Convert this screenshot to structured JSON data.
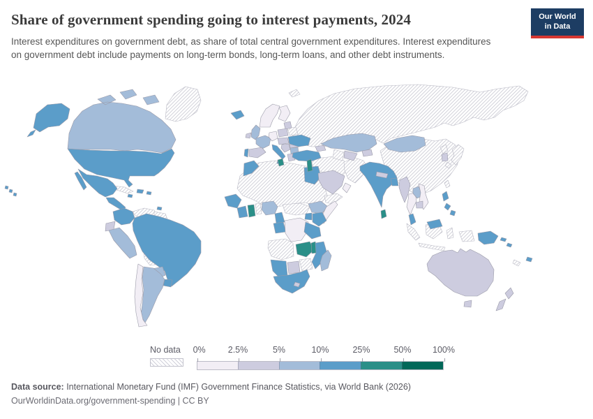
{
  "header": {
    "title": "Share of government spending going to interest payments, 2024",
    "subtitle": "Interest expenditures on government debt, as share of total central government expenditures. Interest expenditures on government debt include payments on long-term bonds, long-term loans, and other debt instruments."
  },
  "logo": {
    "line1": "Our World",
    "line2": "in Data",
    "bg_color": "#1d3d63",
    "accent_color": "#d73731"
  },
  "legend": {
    "no_data_label": "No data",
    "ticks": [
      "0%",
      "2.5%",
      "5%",
      "10%",
      "25%",
      "50%",
      "100%"
    ],
    "colors": [
      "#f2eef5",
      "#cdccdf",
      "#a3bcd9",
      "#5b9dc9",
      "#2a8f88",
      "#016859"
    ]
  },
  "map": {
    "border_color": "#9a9aa8",
    "hatch_line_color": "#cdcdd7",
    "countries": [
      {
        "id": "greenland",
        "name": "Greenland",
        "bin": 0
      },
      {
        "id": "svalbard",
        "name": "Svalbard",
        "bin": 0
      },
      {
        "id": "russia",
        "name": "Russia",
        "bin": 0
      },
      {
        "id": "china",
        "name": "China",
        "bin": 0
      },
      {
        "id": "sahara",
        "name": "Sahara and Sahel region",
        "bin": 0
      },
      {
        "id": "venezuela",
        "name": "Venezuela",
        "bin": 0
      },
      {
        "id": "guyana",
        "name": "Guyana and Suriname",
        "bin": 0
      },
      {
        "id": "bolivia",
        "name": "Bolivia",
        "bin": 0
      },
      {
        "id": "cuba",
        "name": "Cuba",
        "bin": 0
      },
      {
        "id": "angola",
        "name": "Angola",
        "bin": 0
      },
      {
        "id": "zimbabwe",
        "name": "Zimbabwe",
        "bin": 0
      },
      {
        "id": "togo-benin",
        "name": "Togo and Benin",
        "bin": 0
      },
      {
        "id": "car",
        "name": "Central African Republic and South Sudan",
        "bin": 0
      },
      {
        "id": "yemen",
        "name": "Yemen",
        "bin": 0
      },
      {
        "id": "iran-iraq",
        "name": "Iran and Iraq",
        "bin": 0
      },
      {
        "id": "af-pak",
        "name": "Afghanistan and Pakistan",
        "bin": 0
      },
      {
        "id": "japan",
        "name": "Japan",
        "bin": 0
      },
      {
        "id": "north-korea",
        "name": "North Korea",
        "bin": 0
      },
      {
        "id": "indonesia",
        "name": "Indonesia",
        "bin": 0
      },
      {
        "id": "new-caledonia",
        "name": "New Caledonia",
        "bin": 0
      },
      {
        "id": "taiwan",
        "name": "Taiwan",
        "bin": 0
      },
      {
        "id": "belarus",
        "name": "Belarus",
        "bin": 0
      },
      {
        "id": "turkmenistan",
        "name": "Turkmenistan",
        "bin": 0
      },
      {
        "id": "canada",
        "name": "Canada",
        "bin": 3
      },
      {
        "id": "usa",
        "name": "United States",
        "bin": 4
      },
      {
        "id": "mexico",
        "name": "Mexico",
        "bin": 4
      },
      {
        "id": "central-america",
        "name": "Central America",
        "bin": 4
      },
      {
        "id": "caribbean",
        "name": "Caribbean islands",
        "bin": 4
      },
      {
        "id": "colombia",
        "name": "Colombia",
        "bin": 4
      },
      {
        "id": "ecuador",
        "name": "Ecuador",
        "bin": 2
      },
      {
        "id": "peru",
        "name": "Peru",
        "bin": 3
      },
      {
        "id": "brazil",
        "name": "Brazil",
        "bin": 4
      },
      {
        "id": "paraguay",
        "name": "Paraguay",
        "bin": 3
      },
      {
        "id": "uruguay",
        "name": "Uruguay",
        "bin": 4
      },
      {
        "id": "argentina",
        "name": "Argentina",
        "bin": 3
      },
      {
        "id": "chile",
        "name": "Chile",
        "bin": 1
      },
      {
        "id": "iceland",
        "name": "Iceland",
        "bin": 4
      },
      {
        "id": "scandinavia",
        "name": "Norway and Sweden",
        "bin": 1
      },
      {
        "id": "finland",
        "name": "Finland",
        "bin": 1
      },
      {
        "id": "baltics",
        "name": "Baltic states",
        "bin": 2
      },
      {
        "id": "uk",
        "name": "United Kingdom",
        "bin": 3
      },
      {
        "id": "ireland",
        "name": "Ireland",
        "bin": 2
      },
      {
        "id": "france",
        "name": "France",
        "bin": 3
      },
      {
        "id": "spain",
        "name": "Spain",
        "bin": 2
      },
      {
        "id": "portugal",
        "name": "Portugal",
        "bin": 4
      },
      {
        "id": "germany",
        "name": "Germany",
        "bin": 1
      },
      {
        "id": "poland",
        "name": "Poland",
        "bin": 2
      },
      {
        "id": "central-europe",
        "name": "Central Europe",
        "bin": 2
      },
      {
        "id": "italy",
        "name": "Italy",
        "bin": 4
      },
      {
        "id": "balkans",
        "name": "Balkans",
        "bin": 2
      },
      {
        "id": "romania",
        "name": "Romania",
        "bin": 2
      },
      {
        "id": "bulgaria",
        "name": "Bulgaria",
        "bin": 3
      },
      {
        "id": "greece",
        "name": "Greece",
        "bin": 2
      },
      {
        "id": "ukraine",
        "name": "Ukraine",
        "bin": 4
      },
      {
        "id": "turkey",
        "name": "Turkey",
        "bin": 4
      },
      {
        "id": "caucasus",
        "name": "Caucasus",
        "bin": 2
      },
      {
        "id": "morocco",
        "name": "Morocco",
        "bin": 4
      },
      {
        "id": "tunisia",
        "name": "Tunisia",
        "bin": 5
      },
      {
        "id": "egypt",
        "name": "Egypt",
        "bin": 4
      },
      {
        "id": "levant",
        "name": "Levant",
        "bin": 5
      },
      {
        "id": "saudi-arabia",
        "name": "Saudi Arabia",
        "bin": 2
      },
      {
        "id": "oman",
        "name": "Oman",
        "bin": 1
      },
      {
        "id": "kazakhstan",
        "name": "Kazakhstan",
        "bin": 3
      },
      {
        "id": "uzbekistan",
        "name": "Uzbekistan",
        "bin": 2
      },
      {
        "id": "kyrgyzstan",
        "name": "Kyrgyzstan",
        "bin": 2
      },
      {
        "id": "mongolia",
        "name": "Mongolia",
        "bin": 3
      },
      {
        "id": "south-korea",
        "name": "South Korea",
        "bin": 2
      },
      {
        "id": "india",
        "name": "India",
        "bin": 4
      },
      {
        "id": "nepal",
        "name": "Nepal",
        "bin": 2
      },
      {
        "id": "bangladesh",
        "name": "Bangladesh",
        "bin": 4
      },
      {
        "id": "sri-lanka",
        "name": "Sri Lanka",
        "bin": 5
      },
      {
        "id": "myanmar",
        "name": "Myanmar",
        "bin": 2
      },
      {
        "id": "thailand",
        "name": "Thailand",
        "bin": 1
      },
      {
        "id": "laos",
        "name": "Laos",
        "bin": 3
      },
      {
        "id": "vietnam",
        "name": "Vietnam",
        "bin": 1
      },
      {
        "id": "cambodia",
        "name": "Cambodia",
        "bin": 2
      },
      {
        "id": "malaysia",
        "name": "Malaysia",
        "bin": 4
      },
      {
        "id": "philippines",
        "name": "Philippines",
        "bin": 4
      },
      {
        "id": "png",
        "name": "Papua New Guinea",
        "bin": 4
      },
      {
        "id": "solomon-islands",
        "name": "Solomon Islands",
        "bin": 4
      },
      {
        "id": "fiji",
        "name": "Fiji",
        "bin": 4
      },
      {
        "id": "australia",
        "name": "Australia",
        "bin": 2
      },
      {
        "id": "new-zealand",
        "name": "New Zealand",
        "bin": 2
      },
      {
        "id": "senegal-guinea",
        "name": "Senegal and Guinea",
        "bin": 4
      },
      {
        "id": "ivory-coast",
        "name": "Ivory Coast",
        "bin": 4
      },
      {
        "id": "ghana",
        "name": "Ghana",
        "bin": 5
      },
      {
        "id": "nigeria",
        "name": "Nigeria",
        "bin": 3
      },
      {
        "id": "cameroon",
        "name": "Cameroon",
        "bin": 4
      },
      {
        "id": "gabon-congo",
        "name": "Gabon and Congo",
        "bin": 4
      },
      {
        "id": "drc",
        "name": "Democratic Republic of Congo",
        "bin": 1
      },
      {
        "id": "ethiopia",
        "name": "Ethiopia",
        "bin": 3
      },
      {
        "id": "somalia",
        "name": "Somalia",
        "bin": 1
      },
      {
        "id": "kenya",
        "name": "Kenya",
        "bin": 4
      },
      {
        "id": "uganda",
        "name": "Uganda",
        "bin": 4
      },
      {
        "id": "tanzania",
        "name": "Tanzania",
        "bin": 4
      },
      {
        "id": "zambia",
        "name": "Zambia",
        "bin": 5
      },
      {
        "id": "malawi",
        "name": "Malawi",
        "bin": 5
      },
      {
        "id": "mozambique",
        "name": "Mozambique",
        "bin": 4
      },
      {
        "id": "madagascar",
        "name": "Madagascar",
        "bin": 3
      },
      {
        "id": "namibia",
        "name": "Namibia",
        "bin": 4
      },
      {
        "id": "botswana",
        "name": "Botswana",
        "bin": 2
      },
      {
        "id": "south-africa",
        "name": "South Africa",
        "bin": 4
      },
      {
        "id": "lesotho",
        "name": "Lesotho",
        "bin": 2
      }
    ]
  },
  "footer": {
    "source_label": "Data source:",
    "source_text": " International Monetary Fund (IMF) Government Finance Statistics, via World Bank (2026)",
    "url": "OurWorldinData.org/government-spending",
    "separator": " | ",
    "license": "CC BY"
  },
  "chart_data": {
    "type": "choropleth_map",
    "title": "Share of government spending going to interest payments, 2024",
    "subtitle": "Interest expenditures on government debt, as share of total central government expenditures.",
    "year": 2024,
    "unit": "% of total central government expenditures",
    "legend_position": "bottom",
    "bins": [
      {
        "label": "No data",
        "style": "diagonal-hatch"
      },
      {
        "label": "0%-2.5%",
        "color": "#f2eef5"
      },
      {
        "label": "2.5%-5%",
        "color": "#cdccdf"
      },
      {
        "label": "5%-10%",
        "color": "#a3bcd9"
      },
      {
        "label": "10%-25%",
        "color": "#5b9dc9"
      },
      {
        "label": "25%-50%",
        "color": "#2a8f88"
      },
      {
        "label": "50%-100%",
        "color": "#016859"
      }
    ],
    "countries_by_bin": {
      "no_data": [
        "Greenland",
        "Russia",
        "China",
        "Venezuela",
        "Guyana and Suriname",
        "Bolivia",
        "Cuba",
        "Algeria",
        "Libya",
        "Sudan",
        "Chad",
        "Niger",
        "Mali",
        "Mauritania",
        "Angola",
        "Zimbabwe",
        "Togo",
        "Benin",
        "Central African Republic",
        "South Sudan",
        "Yemen",
        "Iran",
        "Iraq",
        "Afghanistan",
        "Pakistan",
        "Japan",
        "North Korea",
        "Indonesia",
        "New Caledonia",
        "Taiwan",
        "Belarus",
        "Turkmenistan"
      ],
      "0%-2.5%": [
        "Norway",
        "Sweden",
        "Finland",
        "Germany",
        "Chile",
        "Democratic Republic of Congo",
        "Somalia",
        "Thailand",
        "Vietnam",
        "Oman"
      ],
      "2.5%-5%": [
        "Australia",
        "New Zealand",
        "Spain",
        "Poland",
        "Central Europe",
        "Romania",
        "Greece",
        "Ireland",
        "Baltic states",
        "Balkans",
        "Saudi Arabia",
        "South Korea",
        "Nepal",
        "Myanmar",
        "Cambodia",
        "Uzbekistan",
        "Kyrgyzstan",
        "Caucasus",
        "Ecuador",
        "Botswana",
        "Lesotho"
      ],
      "5%-10%": [
        "Canada",
        "United Kingdom",
        "France",
        "Kazakhstan",
        "Mongolia",
        "Peru",
        "Argentina",
        "Paraguay",
        "Bulgaria",
        "Nigeria",
        "Ethiopia",
        "Madagascar",
        "Laos"
      ],
      "10%-25%": [
        "United States",
        "Mexico",
        "Central America",
        "Caribbean islands",
        "Colombia",
        "Brazil",
        "Uruguay",
        "Iceland",
        "Portugal",
        "Italy",
        "Ukraine",
        "Turkey",
        "Morocco",
        "Egypt",
        "Senegal",
        "Guinea",
        "Ivory Coast",
        "Cameroon",
        "Gabon",
        "Congo",
        "Kenya",
        "Uganda",
        "Tanzania",
        "Mozambique",
        "Namibia",
        "South Africa",
        "India",
        "Bangladesh",
        "Malaysia",
        "Philippines",
        "Papua New Guinea",
        "Solomon Islands",
        "Fiji"
      ],
      "25%-50%": [
        "Ghana",
        "Zambia",
        "Malawi",
        "Sri Lanka",
        "Tunisia",
        "Lebanon"
      ],
      "50%-100%": []
    }
  }
}
